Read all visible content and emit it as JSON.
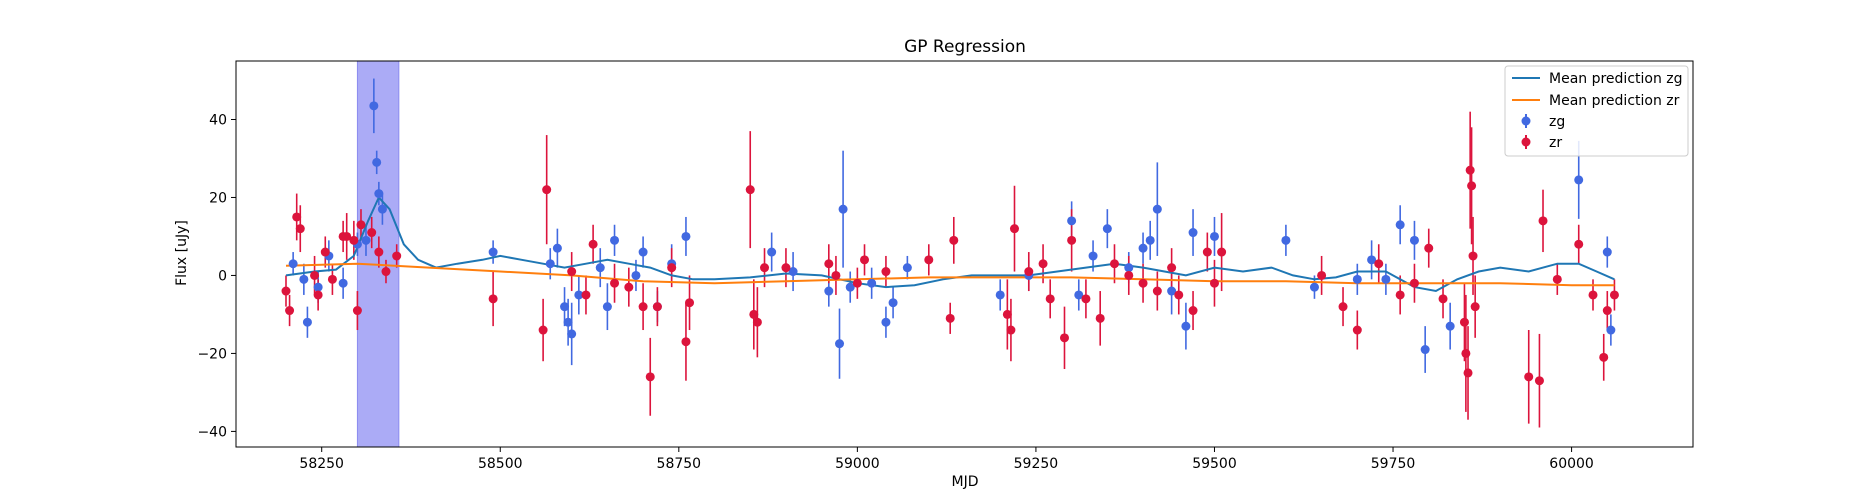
{
  "chart_data": {
    "type": "scatter",
    "title": "GP Regression",
    "xlabel": "MJD",
    "ylabel": "Flux [uJy]",
    "xlim": [
      58130,
      60170
    ],
    "ylim": [
      -44,
      55
    ],
    "x_ticks": [
      58250,
      58500,
      58750,
      59000,
      59250,
      59500,
      59750,
      60000
    ],
    "y_ticks": [
      -40,
      -20,
      0,
      20,
      40
    ],
    "grid": false,
    "legend_position": "top-right",
    "highlight_span": {
      "x": [
        58300,
        58358
      ],
      "color": "#a6a6f6"
    },
    "lines": [
      {
        "name": "Mean prediction zg",
        "color": "#1f77b4",
        "points": [
          [
            58200,
            0
          ],
          [
            58240,
            1
          ],
          [
            58270,
            1.5
          ],
          [
            58295,
            5
          ],
          [
            58315,
            14
          ],
          [
            58330,
            20
          ],
          [
            58345,
            17
          ],
          [
            58365,
            8
          ],
          [
            58385,
            4
          ],
          [
            58410,
            2
          ],
          [
            58440,
            3
          ],
          [
            58475,
            4
          ],
          [
            58500,
            5
          ],
          [
            58530,
            4
          ],
          [
            58560,
            3
          ],
          [
            58590,
            2
          ],
          [
            58620,
            3
          ],
          [
            58650,
            4
          ],
          [
            58680,
            3
          ],
          [
            58710,
            2
          ],
          [
            58740,
            0
          ],
          [
            58770,
            -1
          ],
          [
            58800,
            -1
          ],
          [
            58850,
            -0.5
          ],
          [
            58900,
            0.5
          ],
          [
            58950,
            0
          ],
          [
            59000,
            -2
          ],
          [
            59040,
            -3
          ],
          [
            59080,
            -2.5
          ],
          [
            59120,
            -1
          ],
          [
            59160,
            0
          ],
          [
            59200,
            0
          ],
          [
            59240,
            0
          ],
          [
            59280,
            1
          ],
          [
            59320,
            2
          ],
          [
            59360,
            3
          ],
          [
            59400,
            2
          ],
          [
            59430,
            1
          ],
          [
            59460,
            0
          ],
          [
            59500,
            2
          ],
          [
            59540,
            1
          ],
          [
            59580,
            2
          ],
          [
            59610,
            0
          ],
          [
            59640,
            -1
          ],
          [
            59670,
            -0.5
          ],
          [
            59700,
            1
          ],
          [
            59740,
            1
          ],
          [
            59780,
            -3
          ],
          [
            59810,
            -4
          ],
          [
            59840,
            -1
          ],
          [
            59870,
            1
          ],
          [
            59900,
            2
          ],
          [
            59940,
            1
          ],
          [
            59980,
            3
          ],
          [
            60010,
            3
          ],
          [
            60035,
            1
          ],
          [
            60060,
            -1
          ]
        ]
      },
      {
        "name": "Mean prediction zr",
        "color": "#ff7f0e",
        "points": [
          [
            58200,
            2.5
          ],
          [
            58300,
            3
          ],
          [
            58400,
            2
          ],
          [
            58500,
            1
          ],
          [
            58600,
            0
          ],
          [
            58700,
            -1.5
          ],
          [
            58800,
            -2
          ],
          [
            58900,
            -1.5
          ],
          [
            59000,
            -1
          ],
          [
            59100,
            -0.5
          ],
          [
            59200,
            -0.5
          ],
          [
            59300,
            -0.5
          ],
          [
            59400,
            -1
          ],
          [
            59500,
            -1.5
          ],
          [
            59600,
            -1.5
          ],
          [
            59700,
            -2
          ],
          [
            59800,
            -2
          ],
          [
            59900,
            -2
          ],
          [
            60000,
            -2.5
          ],
          [
            60060,
            -2.5
          ]
        ]
      }
    ],
    "series": [
      {
        "name": "zg",
        "color": "#4169e1",
        "points": [
          [
            58210,
            3,
            3
          ],
          [
            58225,
            -1,
            4
          ],
          [
            58230,
            -12,
            4
          ],
          [
            58245,
            -3,
            4
          ],
          [
            58260,
            5,
            4
          ],
          [
            58280,
            -2,
            4
          ],
          [
            58300,
            8,
            3
          ],
          [
            58312,
            9,
            4
          ],
          [
            58323,
            43.5,
            7
          ],
          [
            58327,
            29,
            3
          ],
          [
            58330,
            21,
            3
          ],
          [
            58335,
            17,
            4
          ],
          [
            58490,
            6,
            3
          ],
          [
            58570,
            3,
            4
          ],
          [
            58580,
            7,
            5
          ],
          [
            58590,
            -8,
            5
          ],
          [
            58595,
            -12,
            6
          ],
          [
            58600,
            -15,
            8
          ],
          [
            58610,
            -5,
            5
          ],
          [
            58640,
            2,
            5
          ],
          [
            58650,
            -8,
            6
          ],
          [
            58660,
            9,
            4
          ],
          [
            58690,
            0,
            4
          ],
          [
            58700,
            6,
            4
          ],
          [
            58720,
            -8,
            4
          ],
          [
            58740,
            3,
            5
          ],
          [
            58760,
            10,
            5
          ],
          [
            58880,
            6,
            5
          ],
          [
            58910,
            1,
            5
          ],
          [
            58960,
            -4,
            4
          ],
          [
            58975,
            -17.5,
            9
          ],
          [
            58980,
            17,
            15
          ],
          [
            58990,
            -3,
            4
          ],
          [
            59020,
            -2,
            4
          ],
          [
            59040,
            -12,
            4
          ],
          [
            59050,
            -7,
            4
          ],
          [
            59070,
            2,
            3
          ],
          [
            59200,
            -5,
            4
          ],
          [
            59240,
            0,
            4
          ],
          [
            59300,
            14,
            5
          ],
          [
            59310,
            -5,
            4
          ],
          [
            59330,
            5,
            4
          ],
          [
            59350,
            12,
            5
          ],
          [
            59380,
            2,
            4
          ],
          [
            59400,
            7,
            4
          ],
          [
            59410,
            9,
            5
          ],
          [
            59420,
            17,
            12
          ],
          [
            59440,
            -4,
            6
          ],
          [
            59460,
            -13,
            6
          ],
          [
            59470,
            11,
            6
          ],
          [
            59500,
            10,
            5
          ],
          [
            59600,
            9,
            4
          ],
          [
            59640,
            -3,
            3
          ],
          [
            59700,
            -1,
            4
          ],
          [
            59720,
            4,
            5
          ],
          [
            59740,
            -1,
            4
          ],
          [
            59760,
            13,
            5
          ],
          [
            59780,
            9,
            5
          ],
          [
            59795,
            -19,
            6
          ],
          [
            59830,
            -13,
            6
          ],
          [
            60010,
            24.5,
            10
          ],
          [
            60050,
            6,
            4
          ],
          [
            60055,
            -14,
            4
          ]
        ]
      },
      {
        "name": "zr",
        "color": "#dc143c",
        "points": [
          [
            58200,
            -4,
            4
          ],
          [
            58205,
            -9,
            4
          ],
          [
            58215,
            15,
            6
          ],
          [
            58220,
            12,
            6
          ],
          [
            58240,
            0,
            5
          ],
          [
            58245,
            -5,
            4
          ],
          [
            58255,
            6,
            4
          ],
          [
            58265,
            -1,
            4
          ],
          [
            58280,
            10,
            4
          ],
          [
            58285,
            10,
            6
          ],
          [
            58295,
            9,
            5
          ],
          [
            58300,
            -9,
            5
          ],
          [
            58305,
            13,
            4
          ],
          [
            58320,
            11,
            4
          ],
          [
            58330,
            6,
            4
          ],
          [
            58340,
            1,
            3
          ],
          [
            58355,
            5,
            3
          ],
          [
            58490,
            -6,
            7
          ],
          [
            58560,
            -14,
            8
          ],
          [
            58565,
            22,
            14
          ],
          [
            58600,
            1,
            5
          ],
          [
            58620,
            -5,
            5
          ],
          [
            58630,
            8,
            5
          ],
          [
            58660,
            -2,
            5
          ],
          [
            58680,
            -3,
            5
          ],
          [
            58700,
            -8,
            6
          ],
          [
            58710,
            -26,
            10
          ],
          [
            58720,
            -8,
            5
          ],
          [
            58740,
            2,
            5
          ],
          [
            58760,
            -17,
            10
          ],
          [
            58765,
            -7,
            7
          ],
          [
            58850,
            22,
            15
          ],
          [
            58855,
            -10,
            9
          ],
          [
            58860,
            -12,
            9
          ],
          [
            58870,
            2,
            5
          ],
          [
            58900,
            2,
            5
          ],
          [
            58960,
            3,
            5
          ],
          [
            58970,
            0,
            5
          ],
          [
            59000,
            -2,
            4
          ],
          [
            59010,
            4,
            4
          ],
          [
            59040,
            1,
            4
          ],
          [
            59100,
            4,
            4
          ],
          [
            59130,
            -11,
            4
          ],
          [
            59135,
            9,
            6
          ],
          [
            59210,
            -10,
            9
          ],
          [
            59215,
            -14,
            8
          ],
          [
            59220,
            12,
            11
          ],
          [
            59240,
            1,
            5
          ],
          [
            59260,
            3,
            5
          ],
          [
            59270,
            -6,
            5
          ],
          [
            59290,
            -16,
            8
          ],
          [
            59300,
            9,
            8
          ],
          [
            59320,
            -6,
            5
          ],
          [
            59340,
            -11,
            7
          ],
          [
            59360,
            3,
            5
          ],
          [
            59380,
            0,
            5
          ],
          [
            59400,
            -2,
            5
          ],
          [
            59420,
            -4,
            5
          ],
          [
            59440,
            2,
            5
          ],
          [
            59450,
            -5,
            5
          ],
          [
            59470,
            -9,
            5
          ],
          [
            59490,
            6,
            5
          ],
          [
            59500,
            -2,
            6
          ],
          [
            59510,
            6,
            10
          ],
          [
            59650,
            0,
            5
          ],
          [
            59680,
            -8,
            5
          ],
          [
            59700,
            -14,
            5
          ],
          [
            59730,
            3,
            5
          ],
          [
            59760,
            -5,
            5
          ],
          [
            59780,
            -2,
            5
          ],
          [
            59800,
            7,
            5
          ],
          [
            59820,
            -6,
            5
          ],
          [
            59850,
            -12,
            10
          ],
          [
            59852,
            -20,
            15
          ],
          [
            59855,
            -25,
            12
          ],
          [
            59858,
            27,
            15
          ],
          [
            59860,
            23,
            15
          ],
          [
            59862,
            5,
            10
          ],
          [
            59865,
            -8,
            8
          ],
          [
            59940,
            -26,
            12
          ],
          [
            59955,
            -27,
            12
          ],
          [
            59960,
            14,
            8
          ],
          [
            59980,
            -1,
            4
          ],
          [
            60010,
            8,
            5
          ],
          [
            60030,
            -5,
            4
          ],
          [
            60045,
            -21,
            6
          ],
          [
            60050,
            -9,
            5
          ],
          [
            60060,
            -5,
            4
          ]
        ]
      }
    ]
  }
}
